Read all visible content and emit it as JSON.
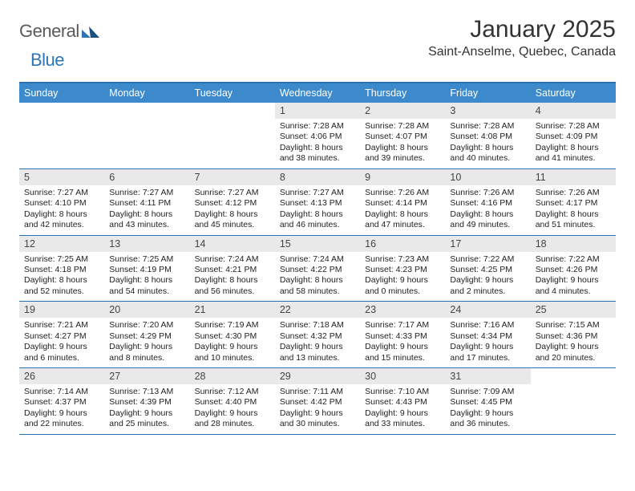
{
  "brand": {
    "word1": "General",
    "word2": "Blue"
  },
  "title": "January 2025",
  "location": "Saint-Anselme, Quebec, Canada",
  "colors": {
    "header_bg": "#3c8acb",
    "accent": "#2d74b5",
    "daynum_bg": "#e9e9e9",
    "text": "#333333"
  },
  "weekdays": [
    "Sunday",
    "Monday",
    "Tuesday",
    "Wednesday",
    "Thursday",
    "Friday",
    "Saturday"
  ],
  "weeks": [
    [
      {
        "n": "",
        "sunrise": "",
        "sunset": "",
        "daylight1": "",
        "daylight2": ""
      },
      {
        "n": "",
        "sunrise": "",
        "sunset": "",
        "daylight1": "",
        "daylight2": ""
      },
      {
        "n": "",
        "sunrise": "",
        "sunset": "",
        "daylight1": "",
        "daylight2": ""
      },
      {
        "n": "1",
        "sunrise": "Sunrise: 7:28 AM",
        "sunset": "Sunset: 4:06 PM",
        "daylight1": "Daylight: 8 hours",
        "daylight2": "and 38 minutes."
      },
      {
        "n": "2",
        "sunrise": "Sunrise: 7:28 AM",
        "sunset": "Sunset: 4:07 PM",
        "daylight1": "Daylight: 8 hours",
        "daylight2": "and 39 minutes."
      },
      {
        "n": "3",
        "sunrise": "Sunrise: 7:28 AM",
        "sunset": "Sunset: 4:08 PM",
        "daylight1": "Daylight: 8 hours",
        "daylight2": "and 40 minutes."
      },
      {
        "n": "4",
        "sunrise": "Sunrise: 7:28 AM",
        "sunset": "Sunset: 4:09 PM",
        "daylight1": "Daylight: 8 hours",
        "daylight2": "and 41 minutes."
      }
    ],
    [
      {
        "n": "5",
        "sunrise": "Sunrise: 7:27 AM",
        "sunset": "Sunset: 4:10 PM",
        "daylight1": "Daylight: 8 hours",
        "daylight2": "and 42 minutes."
      },
      {
        "n": "6",
        "sunrise": "Sunrise: 7:27 AM",
        "sunset": "Sunset: 4:11 PM",
        "daylight1": "Daylight: 8 hours",
        "daylight2": "and 43 minutes."
      },
      {
        "n": "7",
        "sunrise": "Sunrise: 7:27 AM",
        "sunset": "Sunset: 4:12 PM",
        "daylight1": "Daylight: 8 hours",
        "daylight2": "and 45 minutes."
      },
      {
        "n": "8",
        "sunrise": "Sunrise: 7:27 AM",
        "sunset": "Sunset: 4:13 PM",
        "daylight1": "Daylight: 8 hours",
        "daylight2": "and 46 minutes."
      },
      {
        "n": "9",
        "sunrise": "Sunrise: 7:26 AM",
        "sunset": "Sunset: 4:14 PM",
        "daylight1": "Daylight: 8 hours",
        "daylight2": "and 47 minutes."
      },
      {
        "n": "10",
        "sunrise": "Sunrise: 7:26 AM",
        "sunset": "Sunset: 4:16 PM",
        "daylight1": "Daylight: 8 hours",
        "daylight2": "and 49 minutes."
      },
      {
        "n": "11",
        "sunrise": "Sunrise: 7:26 AM",
        "sunset": "Sunset: 4:17 PM",
        "daylight1": "Daylight: 8 hours",
        "daylight2": "and 51 minutes."
      }
    ],
    [
      {
        "n": "12",
        "sunrise": "Sunrise: 7:25 AM",
        "sunset": "Sunset: 4:18 PM",
        "daylight1": "Daylight: 8 hours",
        "daylight2": "and 52 minutes."
      },
      {
        "n": "13",
        "sunrise": "Sunrise: 7:25 AM",
        "sunset": "Sunset: 4:19 PM",
        "daylight1": "Daylight: 8 hours",
        "daylight2": "and 54 minutes."
      },
      {
        "n": "14",
        "sunrise": "Sunrise: 7:24 AM",
        "sunset": "Sunset: 4:21 PM",
        "daylight1": "Daylight: 8 hours",
        "daylight2": "and 56 minutes."
      },
      {
        "n": "15",
        "sunrise": "Sunrise: 7:24 AM",
        "sunset": "Sunset: 4:22 PM",
        "daylight1": "Daylight: 8 hours",
        "daylight2": "and 58 minutes."
      },
      {
        "n": "16",
        "sunrise": "Sunrise: 7:23 AM",
        "sunset": "Sunset: 4:23 PM",
        "daylight1": "Daylight: 9 hours",
        "daylight2": "and 0 minutes."
      },
      {
        "n": "17",
        "sunrise": "Sunrise: 7:22 AM",
        "sunset": "Sunset: 4:25 PM",
        "daylight1": "Daylight: 9 hours",
        "daylight2": "and 2 minutes."
      },
      {
        "n": "18",
        "sunrise": "Sunrise: 7:22 AM",
        "sunset": "Sunset: 4:26 PM",
        "daylight1": "Daylight: 9 hours",
        "daylight2": "and 4 minutes."
      }
    ],
    [
      {
        "n": "19",
        "sunrise": "Sunrise: 7:21 AM",
        "sunset": "Sunset: 4:27 PM",
        "daylight1": "Daylight: 9 hours",
        "daylight2": "and 6 minutes."
      },
      {
        "n": "20",
        "sunrise": "Sunrise: 7:20 AM",
        "sunset": "Sunset: 4:29 PM",
        "daylight1": "Daylight: 9 hours",
        "daylight2": "and 8 minutes."
      },
      {
        "n": "21",
        "sunrise": "Sunrise: 7:19 AM",
        "sunset": "Sunset: 4:30 PM",
        "daylight1": "Daylight: 9 hours",
        "daylight2": "and 10 minutes."
      },
      {
        "n": "22",
        "sunrise": "Sunrise: 7:18 AM",
        "sunset": "Sunset: 4:32 PM",
        "daylight1": "Daylight: 9 hours",
        "daylight2": "and 13 minutes."
      },
      {
        "n": "23",
        "sunrise": "Sunrise: 7:17 AM",
        "sunset": "Sunset: 4:33 PM",
        "daylight1": "Daylight: 9 hours",
        "daylight2": "and 15 minutes."
      },
      {
        "n": "24",
        "sunrise": "Sunrise: 7:16 AM",
        "sunset": "Sunset: 4:34 PM",
        "daylight1": "Daylight: 9 hours",
        "daylight2": "and 17 minutes."
      },
      {
        "n": "25",
        "sunrise": "Sunrise: 7:15 AM",
        "sunset": "Sunset: 4:36 PM",
        "daylight1": "Daylight: 9 hours",
        "daylight2": "and 20 minutes."
      }
    ],
    [
      {
        "n": "26",
        "sunrise": "Sunrise: 7:14 AM",
        "sunset": "Sunset: 4:37 PM",
        "daylight1": "Daylight: 9 hours",
        "daylight2": "and 22 minutes."
      },
      {
        "n": "27",
        "sunrise": "Sunrise: 7:13 AM",
        "sunset": "Sunset: 4:39 PM",
        "daylight1": "Daylight: 9 hours",
        "daylight2": "and 25 minutes."
      },
      {
        "n": "28",
        "sunrise": "Sunrise: 7:12 AM",
        "sunset": "Sunset: 4:40 PM",
        "daylight1": "Daylight: 9 hours",
        "daylight2": "and 28 minutes."
      },
      {
        "n": "29",
        "sunrise": "Sunrise: 7:11 AM",
        "sunset": "Sunset: 4:42 PM",
        "daylight1": "Daylight: 9 hours",
        "daylight2": "and 30 minutes."
      },
      {
        "n": "30",
        "sunrise": "Sunrise: 7:10 AM",
        "sunset": "Sunset: 4:43 PM",
        "daylight1": "Daylight: 9 hours",
        "daylight2": "and 33 minutes."
      },
      {
        "n": "31",
        "sunrise": "Sunrise: 7:09 AM",
        "sunset": "Sunset: 4:45 PM",
        "daylight1": "Daylight: 9 hours",
        "daylight2": "and 36 minutes."
      },
      {
        "n": "",
        "sunrise": "",
        "sunset": "",
        "daylight1": "",
        "daylight2": ""
      }
    ]
  ]
}
